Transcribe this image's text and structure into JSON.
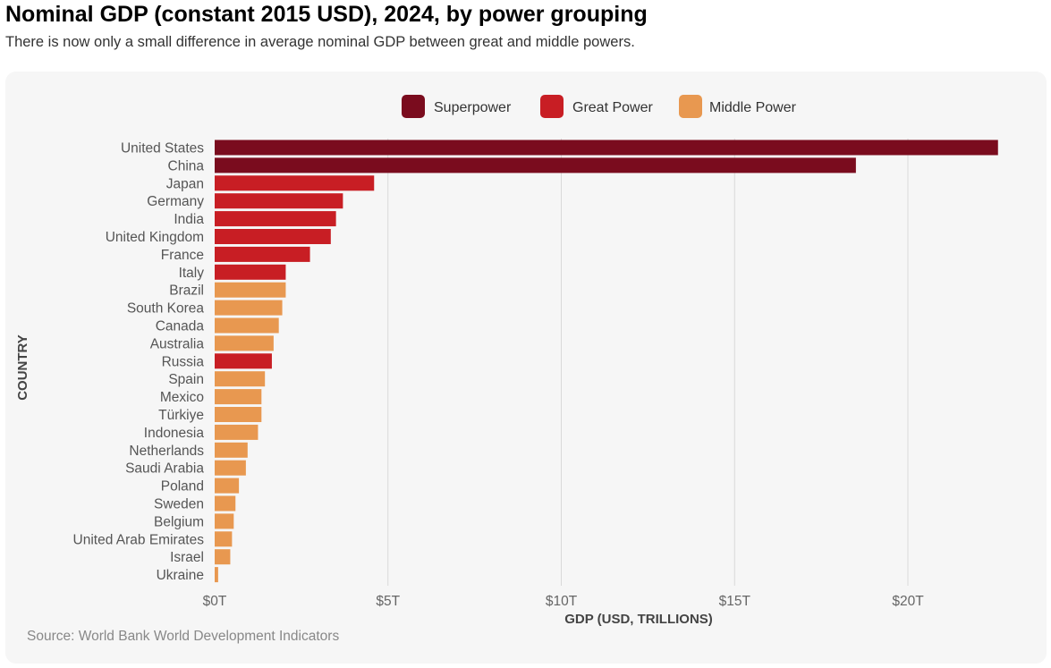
{
  "title": "Nominal GDP (constant 2015 USD), 2024, by power grouping",
  "subtitle": "There is now only a small difference in average nominal GDP between great and middle powers.",
  "source": "Source: World Bank World Development Indicators",
  "chart_data": {
    "type": "bar",
    "orientation": "horizontal",
    "xlabel": "GDP (USD, TRILLIONS)",
    "ylabel": "COUNTRY",
    "xlim": [
      0,
      22.5
    ],
    "xticks": [
      0,
      5,
      10,
      15,
      20
    ],
    "xtick_labels": [
      "$0T",
      "$5T",
      "$10T",
      "$15T",
      "$20T"
    ],
    "grid": "vertical",
    "legend_position": "top",
    "legend": [
      {
        "name": "Superpower",
        "color": "#7a0c1e"
      },
      {
        "name": "Great Power",
        "color": "#c81e24"
      },
      {
        "name": "Middle Power",
        "color": "#e89850"
      }
    ],
    "categories": [
      "United States",
      "China",
      "Japan",
      "Germany",
      "India",
      "United Kingdom",
      "France",
      "Italy",
      "Brazil",
      "South Korea",
      "Canada",
      "Australia",
      "Russia",
      "Spain",
      "Mexico",
      "Türkiye",
      "Indonesia",
      "Netherlands",
      "Saudi Arabia",
      "Poland",
      "Sweden",
      "Belgium",
      "United Arab Emirates",
      "Israel",
      "Ukraine"
    ],
    "values": [
      22.6,
      18.5,
      4.6,
      3.7,
      3.5,
      3.35,
      2.75,
      2.05,
      2.05,
      1.95,
      1.85,
      1.7,
      1.65,
      1.45,
      1.35,
      1.35,
      1.25,
      0.95,
      0.9,
      0.7,
      0.6,
      0.55,
      0.5,
      0.45,
      0.1
    ],
    "groups": [
      "Superpower",
      "Superpower",
      "Great Power",
      "Great Power",
      "Great Power",
      "Great Power",
      "Great Power",
      "Great Power",
      "Middle Power",
      "Middle Power",
      "Middle Power",
      "Middle Power",
      "Great Power",
      "Middle Power",
      "Middle Power",
      "Middle Power",
      "Middle Power",
      "Middle Power",
      "Middle Power",
      "Middle Power",
      "Middle Power",
      "Middle Power",
      "Middle Power",
      "Middle Power",
      "Middle Power"
    ]
  }
}
